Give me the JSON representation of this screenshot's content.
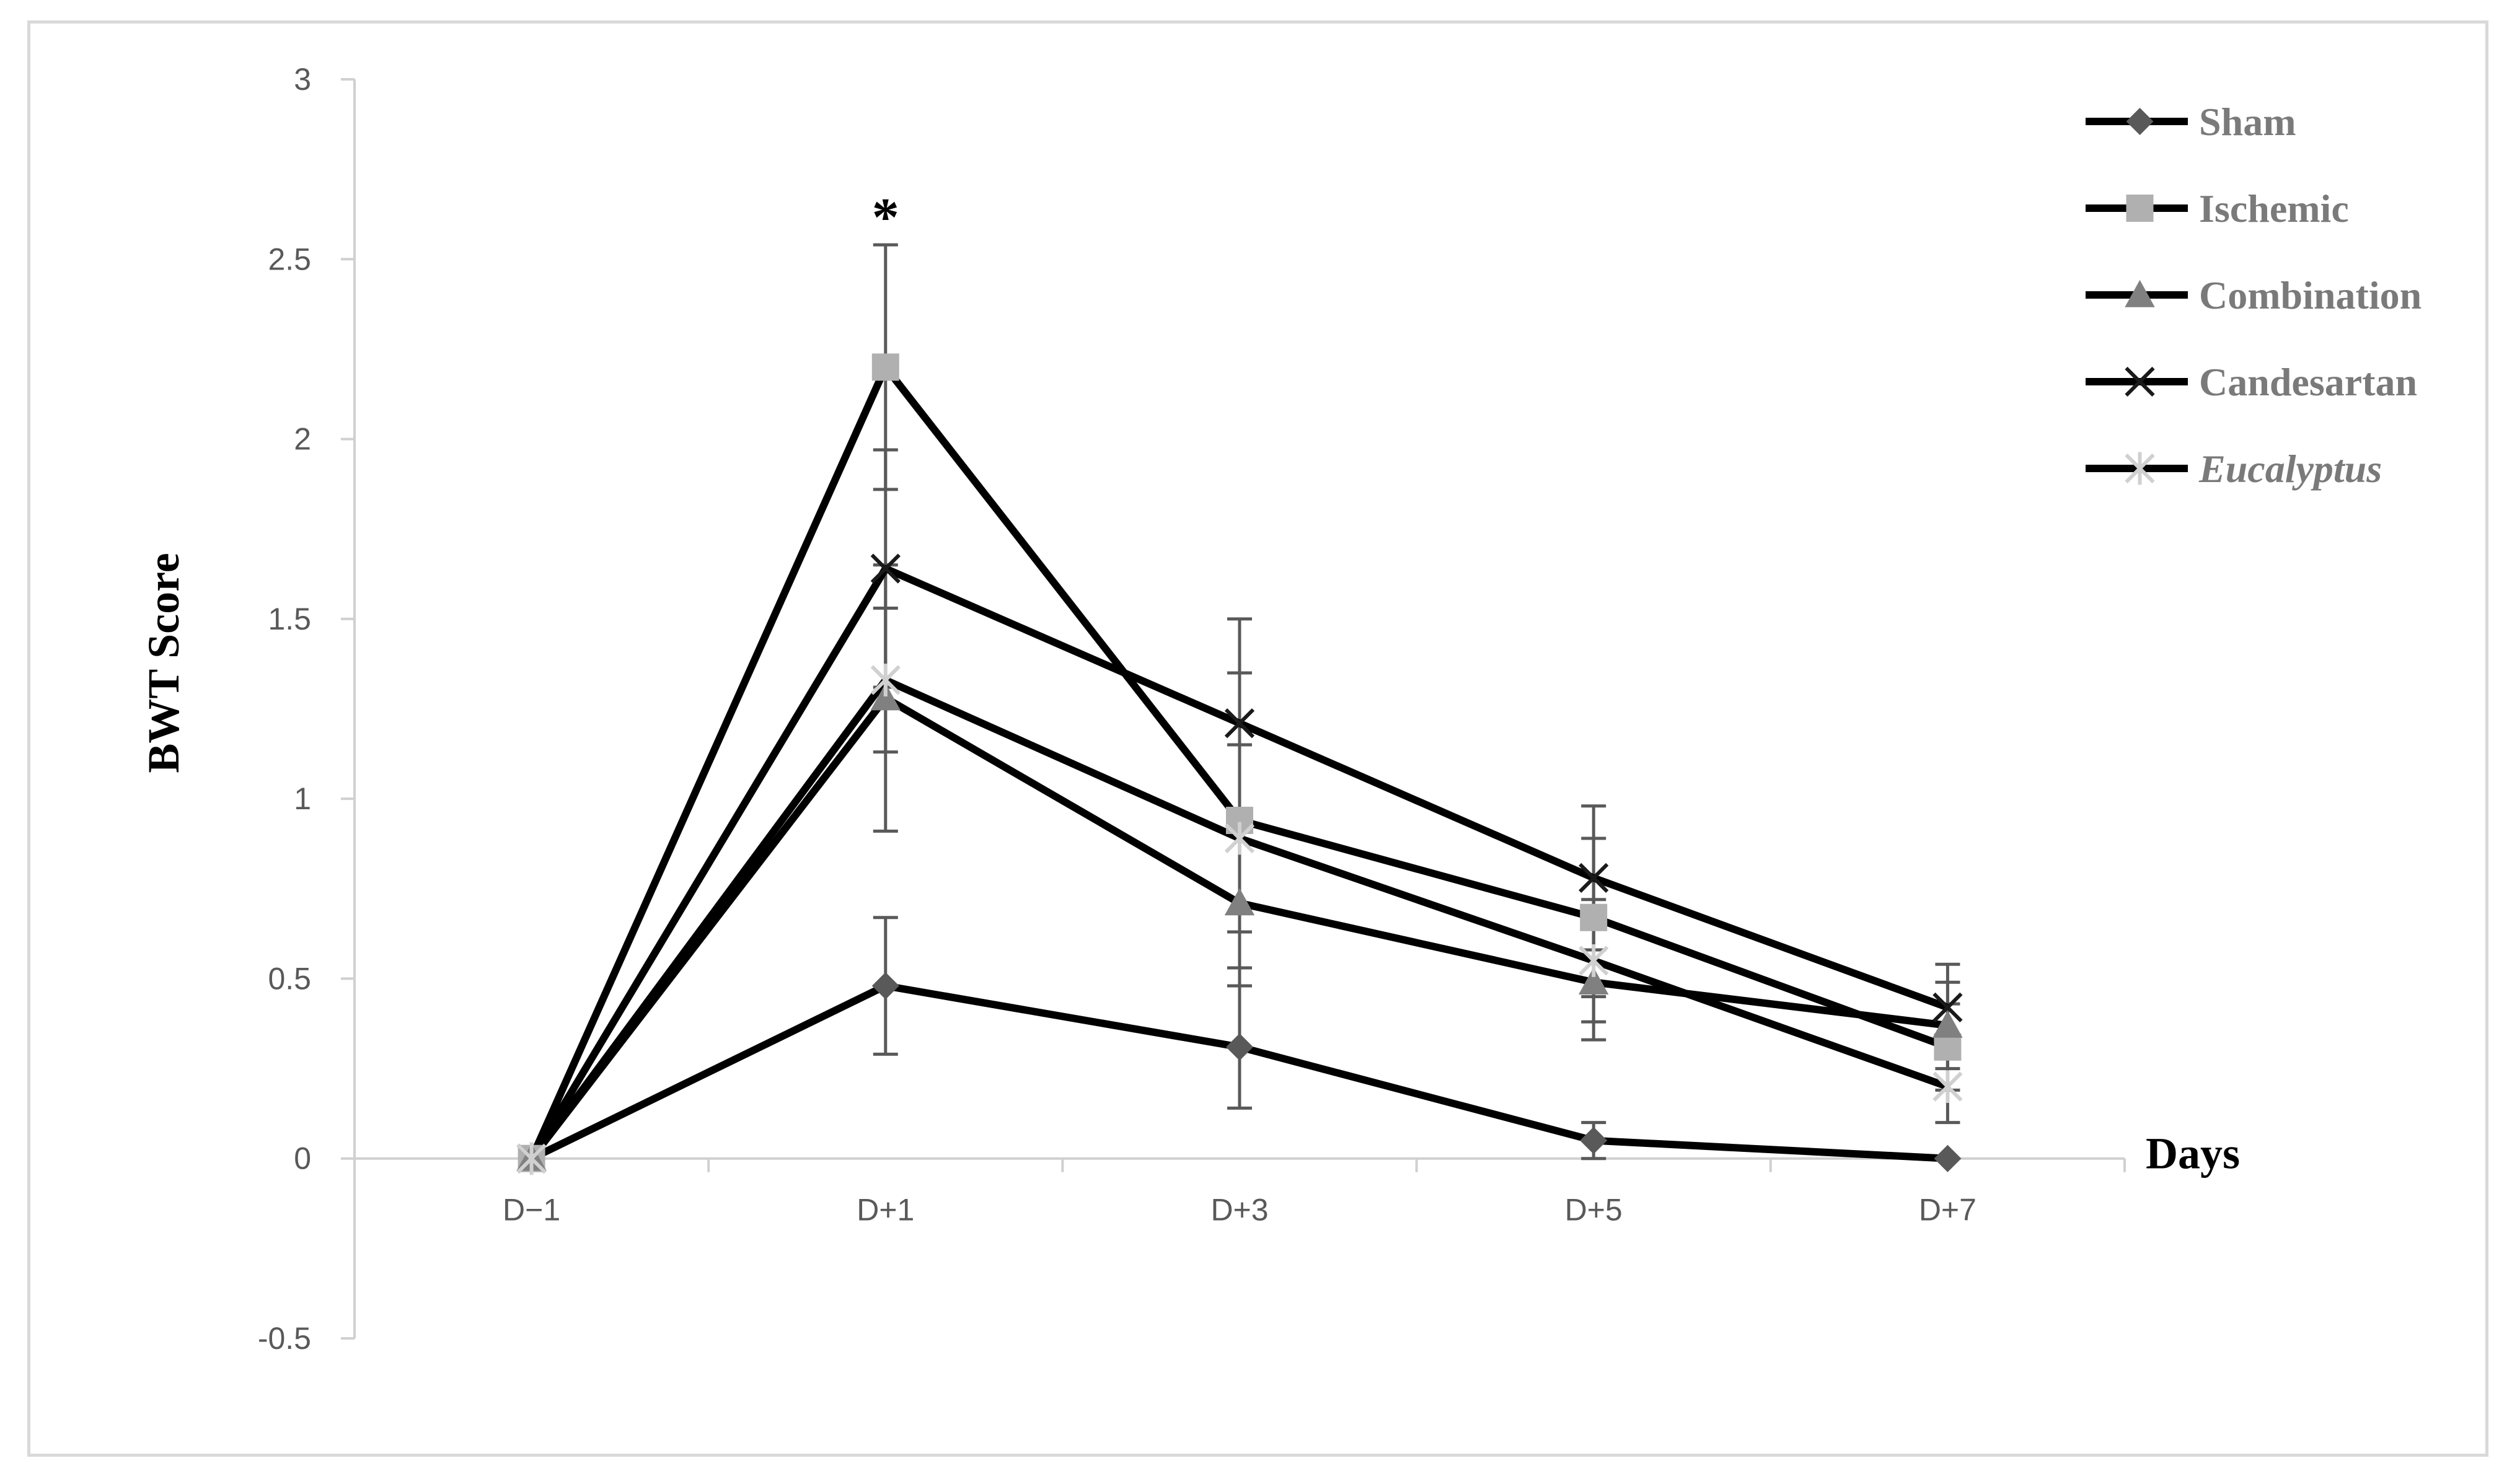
{
  "chart_data": {
    "type": "line",
    "title": "",
    "xlabel": "Days",
    "ylabel": "BWT Score",
    "categories": [
      "D−1",
      "D+1",
      "D+3",
      "D+5",
      "D+7"
    ],
    "ylim": [
      -0.5,
      3
    ],
    "yticks": [
      "-0.5",
      "0",
      "0.5",
      "1",
      "1.5",
      "2",
      "2.5",
      "3"
    ],
    "grid": false,
    "legend_position": "top-right",
    "annotations": [
      {
        "text": "*",
        "category": "D+1"
      }
    ],
    "series": [
      {
        "name": "Sham",
        "italic": false,
        "marker": "diamond",
        "marker_color": "#595959",
        "values": [
          0,
          0.48,
          0.31,
          0.05,
          0
        ],
        "errors": [
          0,
          0.19,
          0.17,
          0.05,
          0
        ]
      },
      {
        "name": "Ischemic",
        "italic": false,
        "marker": "square",
        "marker_color": "#b0b0b0",
        "values": [
          0,
          2.2,
          0.94,
          0.67,
          0.31
        ],
        "errors": [
          0,
          0.34,
          0.41,
          0.22,
          0.12
        ]
      },
      {
        "name": "Combination",
        "italic": false,
        "marker": "triangle",
        "marker_color": "#808080",
        "values": [
          0,
          1.28,
          0.71,
          0.49,
          0.37
        ],
        "errors": [
          0,
          0.37,
          0.23,
          0.16,
          0.12
        ]
      },
      {
        "name": "Candesartan",
        "italic": false,
        "marker": "x",
        "marker_color": "#1a1a1a",
        "values": [
          0,
          1.64,
          1.21,
          0.78,
          0.42
        ],
        "errors": [
          0,
          0.33,
          0.29,
          0.2,
          0.12
        ]
      },
      {
        "name": "Eucalyptus",
        "italic": true,
        "marker": "star",
        "marker_color": "#d0d0d0",
        "values": [
          0,
          1.33,
          0.89,
          0.55,
          0.2
        ],
        "errors": [
          0,
          0.2,
          0.26,
          0.17,
          0.1
        ]
      }
    ]
  }
}
